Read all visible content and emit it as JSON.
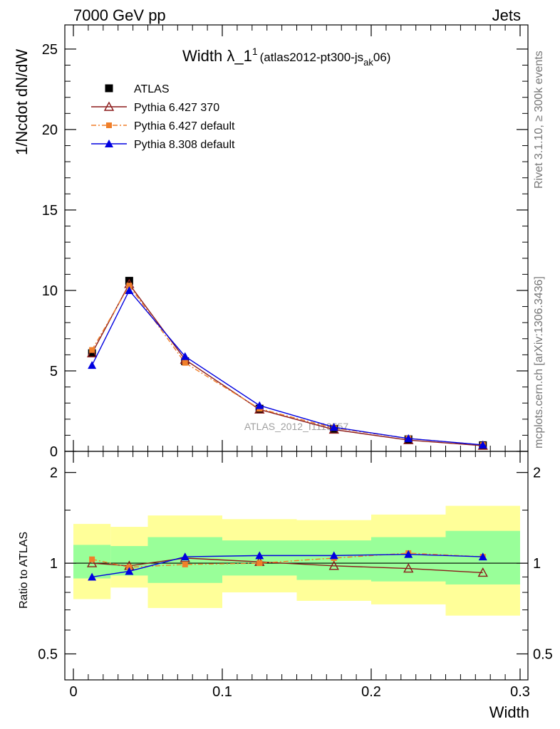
{
  "header": {
    "energy_label": "7000 GeV pp",
    "process_label": "Jets"
  },
  "side_labels": {
    "rivet": "Rivet 3.1.10, ≥ 300k events",
    "mcplots": "mcplots.cern.ch [arXiv:1306.3436]"
  },
  "watermark": "ATLAS_2012_I1119557",
  "chart_data": [
    {
      "type": "line",
      "panel": "main",
      "title_main": "Width λ_1",
      "title_sup": "1",
      "title_detail": "(atlas2012-pt300-js",
      "title_sub": "ak",
      "title_tail": "06)",
      "ylabel": "1/Ncdot dN/dW",
      "xlabel": "Width",
      "xlim": [
        0,
        0.3
      ],
      "ylim": [
        0,
        26.5
      ],
      "yticks": [
        0,
        5,
        10,
        15,
        20,
        25
      ],
      "x": [
        0.0125,
        0.0375,
        0.075,
        0.125,
        0.175,
        0.225,
        0.275
      ],
      "bin_edges": [
        0,
        0.025,
        0.05,
        0.1,
        0.15,
        0.2,
        0.25,
        0.3
      ],
      "legend_position": "top-left",
      "series": [
        {
          "name": "ATLAS",
          "style": "data",
          "color": "#000000",
          "marker": "square",
          "values": [
            6.1,
            10.6,
            5.6,
            2.65,
            1.4,
            0.75,
            0.38
          ]
        },
        {
          "name": "Pythia 6.427 370",
          "style": "line",
          "color": "#8b1a1a",
          "marker": "open-triangle",
          "values": [
            6.1,
            10.4,
            5.7,
            2.6,
            1.35,
            0.7,
            0.35
          ]
        },
        {
          "name": "Pythia 6.427 default",
          "style": "dashdot",
          "color": "#f07f2a",
          "marker": "small-square",
          "values": [
            6.3,
            10.3,
            5.5,
            2.65,
            1.45,
            0.8,
            0.4
          ]
        },
        {
          "name": "Pythia 8.308 default",
          "style": "line",
          "color": "#0000e0",
          "marker": "filled-triangle",
          "values": [
            5.35,
            10.0,
            5.9,
            2.85,
            1.5,
            0.8,
            0.4
          ]
        }
      ]
    },
    {
      "type": "line",
      "panel": "ratio",
      "ylabel": "Ratio to ATLAS",
      "xlabel": "Width",
      "xlim": [
        0,
        0.3
      ],
      "ylim": [
        0.41,
        2.35
      ],
      "yscale": "log",
      "yticks": [
        0.5,
        1,
        2
      ],
      "xticks": [
        0,
        0.1,
        0.2,
        0.3
      ],
      "xtick_labels": [
        "0",
        "0.1",
        "0.2",
        "0.3"
      ],
      "ytick_labels": [
        "0.5",
        "1",
        "2"
      ],
      "x": [
        0.0125,
        0.0375,
        0.075,
        0.125,
        0.175,
        0.225,
        0.275
      ],
      "bin_edges": [
        0,
        0.025,
        0.05,
        0.1,
        0.15,
        0.2,
        0.25,
        0.3
      ],
      "band_yellow": {
        "low": [
          0.76,
          0.83,
          0.71,
          0.8,
          0.75,
          0.73,
          0.67
        ],
        "high": [
          1.35,
          1.32,
          1.44,
          1.4,
          1.39,
          1.45,
          1.55
        ]
      },
      "band_green": {
        "low": [
          0.89,
          0.91,
          0.86,
          0.91,
          0.88,
          0.87,
          0.85
        ],
        "high": [
          1.15,
          1.14,
          1.22,
          1.19,
          1.19,
          1.22,
          1.28
        ]
      },
      "series": [
        {
          "name": "Pythia 6.427 370",
          "color": "#8b1a1a",
          "marker": "open-triangle",
          "values": [
            1.0,
            0.98,
            1.04,
            1.01,
            0.98,
            0.96,
            0.93
          ]
        },
        {
          "name": "Pythia 6.427 default",
          "color": "#f07f2a",
          "marker": "small-square",
          "values": [
            1.03,
            0.97,
            0.99,
            1.0,
            1.04,
            1.08,
            1.05
          ]
        },
        {
          "name": "Pythia 8.308 default",
          "color": "#0000e0",
          "marker": "filled-triangle",
          "values": [
            0.9,
            0.94,
            1.05,
            1.06,
            1.06,
            1.07,
            1.05
          ]
        }
      ]
    }
  ]
}
